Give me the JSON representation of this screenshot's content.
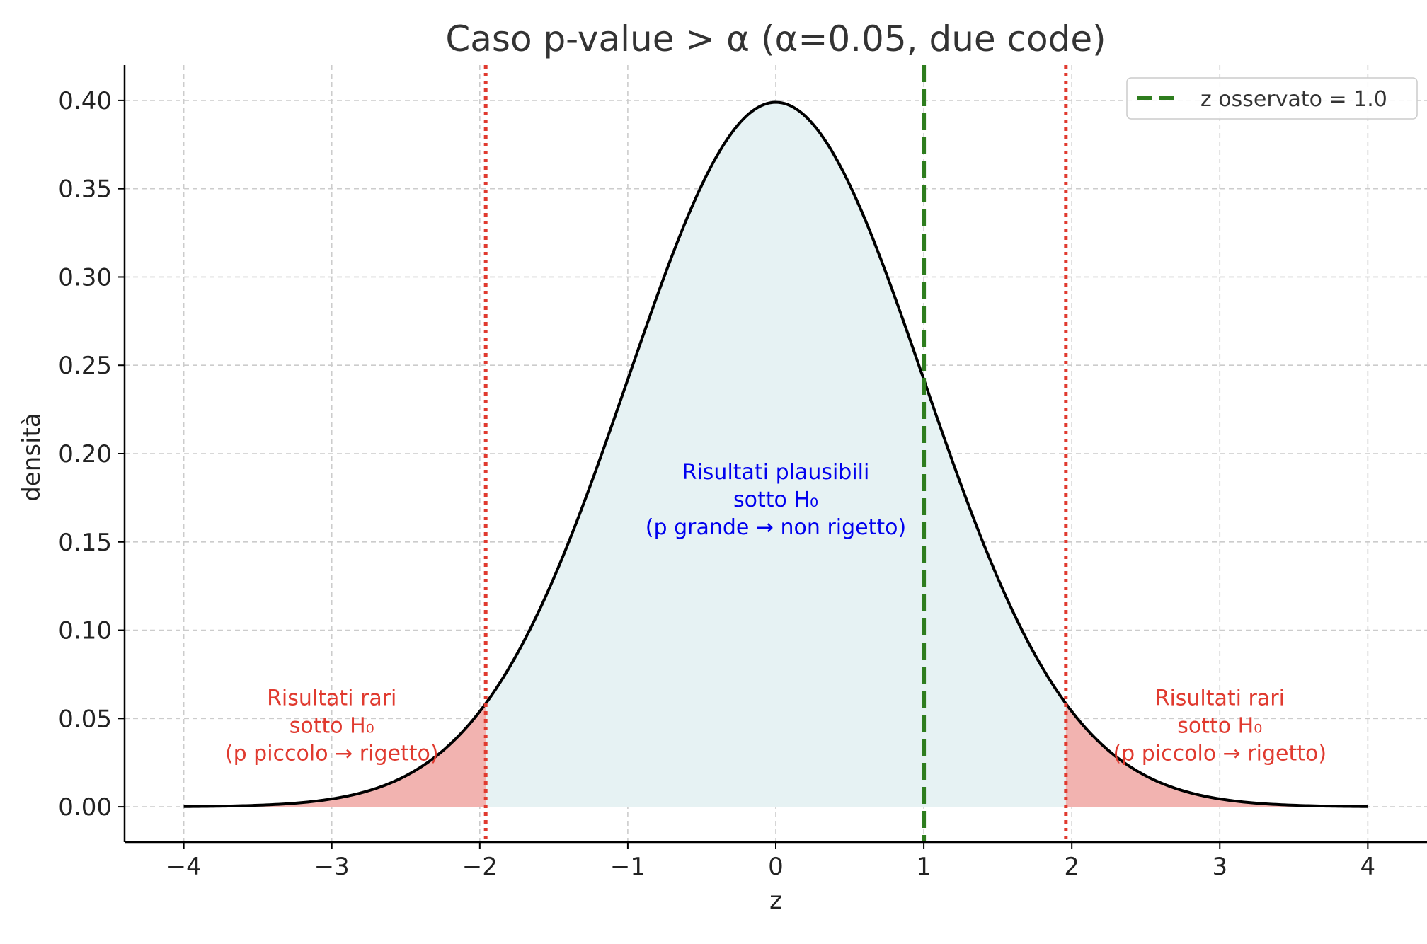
{
  "chart_data": {
    "type": "line",
    "title": "Caso p-value > α (α=0.05, due code)",
    "xlabel": "z",
    "ylabel": "densità",
    "xlim": [
      -4.4,
      4.4
    ],
    "ylim": [
      -0.02,
      0.42
    ],
    "x_ticks": [
      -4,
      -3,
      -2,
      -1,
      0,
      1,
      2,
      3,
      4
    ],
    "x_tick_labels": [
      "−4",
      "−3",
      "−2",
      "−1",
      "0",
      "1",
      "2",
      "3",
      "4"
    ],
    "y_ticks": [
      0.0,
      0.05,
      0.1,
      0.15,
      0.2,
      0.25,
      0.3,
      0.35,
      0.4
    ],
    "y_tick_labels": [
      "0.00",
      "0.05",
      "0.10",
      "0.15",
      "0.20",
      "0.25",
      "0.30",
      "0.35",
      "0.40"
    ],
    "grid": true,
    "legend_position": "top-right",
    "curve": {
      "function": "standard normal density",
      "mean": 0,
      "sd": 1,
      "x_range": [
        -4,
        4
      ],
      "color": "#000000"
    },
    "critical_values": [
      -1.96,
      1.96
    ],
    "critical_line_color": "#e03a2f",
    "observed_z": 1.0,
    "observed_line_color": "#2e7d1e",
    "legend": [
      {
        "label": "z osservato = 1.0",
        "style": "dashed",
        "color": "#2e7d1e"
      }
    ],
    "regions": [
      {
        "id": "left-tail",
        "from": -4,
        "to": -1.96,
        "fill": "#f2b3b0"
      },
      {
        "id": "center",
        "from": -1.96,
        "to": 1.96,
        "fill": "#e6f2f3"
      },
      {
        "id": "right-tail",
        "from": 1.96,
        "to": 4,
        "fill": "#f2b3b0"
      }
    ],
    "annotations": [
      {
        "id": "center",
        "lines": [
          "Risultati plausibili",
          "sotto H₀",
          "(p grande → non rigetto)"
        ],
        "x": 0,
        "y": 0.17,
        "color": "#0000ee"
      },
      {
        "id": "left",
        "lines": [
          "Risultati rari",
          "sotto H₀",
          "(p piccolo → rigetto)"
        ],
        "x": -3.0,
        "y": 0.042,
        "color": "#e03a2f"
      },
      {
        "id": "right",
        "lines": [
          "Risultati rari",
          "sotto H₀",
          "(p piccolo → rigetto)"
        ],
        "x": 3.0,
        "y": 0.042,
        "color": "#e03a2f"
      }
    ]
  }
}
